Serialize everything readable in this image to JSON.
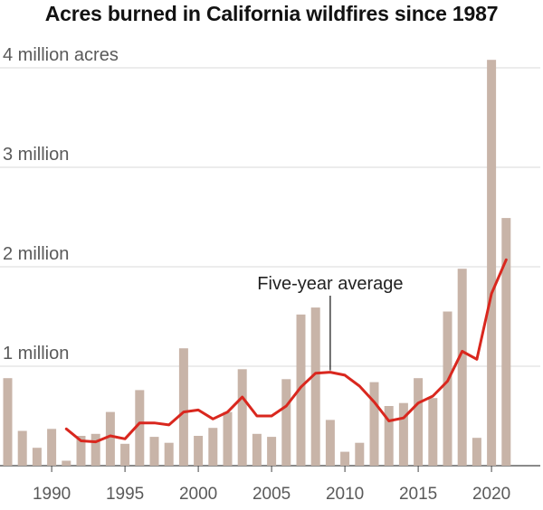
{
  "title": "Acres burned in California wildfires since 1987",
  "colors": {
    "bar": "#c8b4a8",
    "line": "#d9271e",
    "grid": "#d9d9d9",
    "axis": "#444444"
  },
  "chart_data": {
    "type": "bar",
    "title": "Acres burned in California wildfires since 1987",
    "xlabel": "",
    "ylabel": "",
    "ylim": [
      0,
      4200000
    ],
    "xlim": [
      1987,
      2021
    ],
    "grid": true,
    "y_ticks": [
      {
        "value": 4000000,
        "label": "4 million acres"
      },
      {
        "value": 3000000,
        "label": "3 million"
      },
      {
        "value": 2000000,
        "label": "2 million"
      },
      {
        "value": 1000000,
        "label": "1 million"
      }
    ],
    "x_ticks": [
      {
        "value": 1990,
        "label": "1990"
      },
      {
        "value": 1995,
        "label": "1995"
      },
      {
        "value": 2000,
        "label": "2000"
      },
      {
        "value": 2005,
        "label": "2005"
      },
      {
        "value": 2010,
        "label": "2010"
      },
      {
        "value": 2015,
        "label": "2015"
      },
      {
        "value": 2020,
        "label": "2020"
      }
    ],
    "series": [
      {
        "type": "bar",
        "x": [
          1987,
          1988,
          1989,
          1990,
          1991,
          1992,
          1993,
          1994,
          1995,
          1996,
          1997,
          1998,
          1999,
          2000,
          2001,
          2002,
          2003,
          2004,
          2005,
          2006,
          2007,
          2008,
          2009,
          2010,
          2011,
          2012,
          2013,
          2014,
          2015,
          2016,
          2017,
          2018,
          2019,
          2020,
          2021
        ],
        "values": [
          880000,
          350000,
          180000,
          370000,
          50000,
          300000,
          320000,
          540000,
          220000,
          760000,
          290000,
          230000,
          1180000,
          300000,
          380000,
          540000,
          970000,
          320000,
          290000,
          870000,
          1520000,
          1590000,
          460000,
          140000,
          230000,
          840000,
          600000,
          630000,
          880000,
          680000,
          1550000,
          1980000,
          280000,
          4080000,
          2490000
        ]
      },
      {
        "name": "Five-year average",
        "type": "line",
        "x": [
          1991,
          1992,
          1993,
          1994,
          1995,
          1996,
          1997,
          1998,
          1999,
          2000,
          2001,
          2002,
          2003,
          2004,
          2005,
          2006,
          2007,
          2008,
          2009,
          2010,
          2011,
          2012,
          2013,
          2014,
          2015,
          2016,
          2017,
          2018,
          2019,
          2020,
          2021
        ],
        "values": [
          370000,
          250000,
          240000,
          300000,
          270000,
          430000,
          430000,
          410000,
          540000,
          560000,
          470000,
          540000,
          690000,
          500000,
          500000,
          600000,
          790000,
          930000,
          940000,
          910000,
          800000,
          640000,
          450000,
          480000,
          630000,
          700000,
          850000,
          1150000,
          1070000,
          1730000,
          2070000
        ]
      }
    ],
    "annotation": {
      "label": "Five-year average",
      "x": 2009,
      "y": 940000
    }
  }
}
